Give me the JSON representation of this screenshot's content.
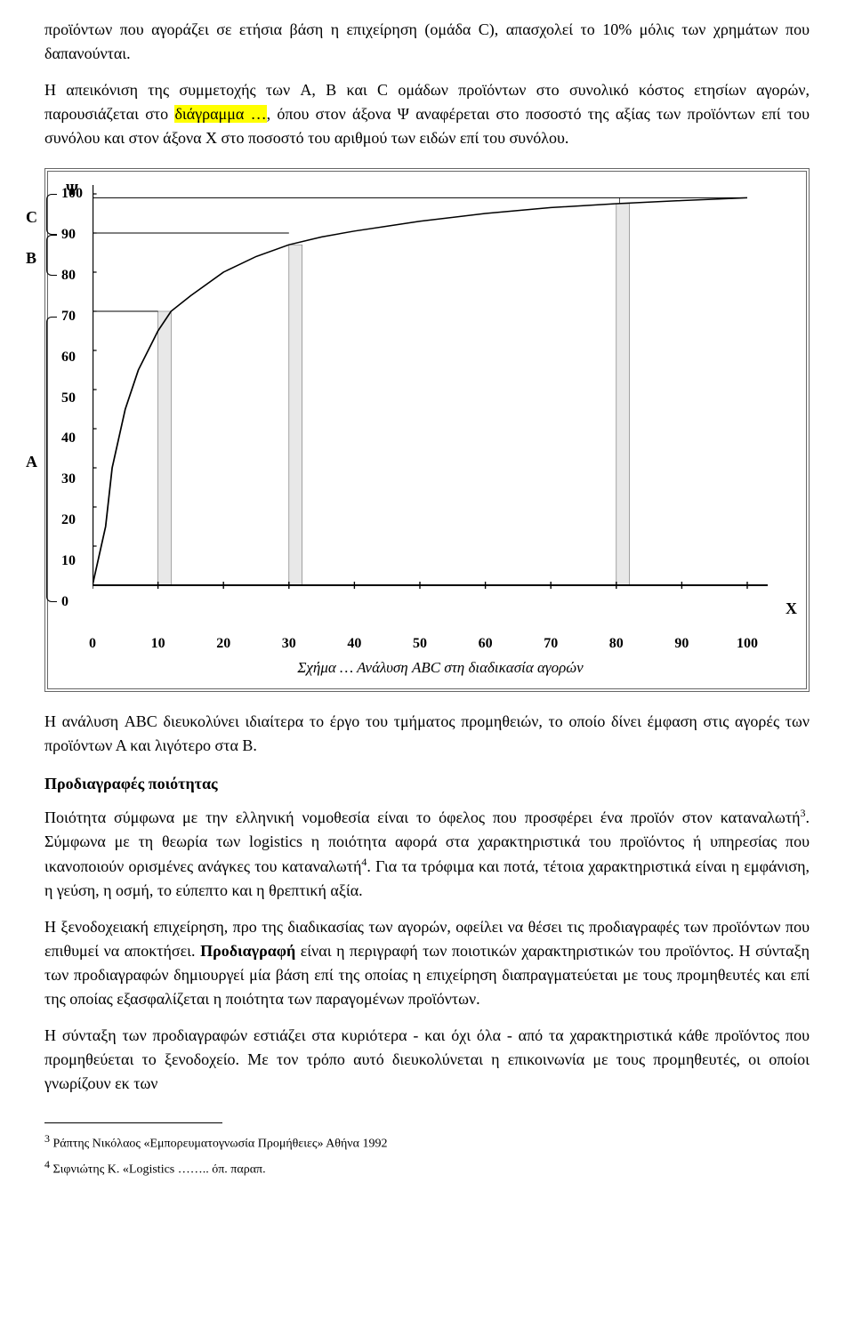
{
  "para1": "προϊόντων που αγοράζει σε ετήσια βάση η επιχείρηση (ομάδα C), απασχολεί το 10% μόλις των χρημάτων που δαπανούνται.",
  "para2a": "Η απεικόνιση της συμμετοχής των A, B και C ομάδων προϊόντων στο συνολικό κόστος ετησίων αγορών, παρουσιάζεται στο ",
  "para2b": "διάγραμμα …",
  "para2c": ", όπου στον άξονα Ψ αναφέρεται στο ποσοστό της αξίας των προϊόντων επί του συνόλου και στον άξονα Χ στο ποσοστό του αριθμού των ειδών επί του συνόλου.",
  "chart": {
    "y_axis_title": "Ψ",
    "x_axis_title": "Χ",
    "y_ticks": [
      0,
      10,
      20,
      30,
      40,
      50,
      60,
      70,
      80,
      90,
      100
    ],
    "x_ticks": [
      0,
      10,
      20,
      30,
      40,
      50,
      60,
      70,
      80,
      90,
      100
    ],
    "curve_points": [
      [
        0,
        0
      ],
      [
        2,
        15
      ],
      [
        3,
        30
      ],
      [
        5,
        45
      ],
      [
        7,
        55
      ],
      [
        10,
        65
      ],
      [
        12,
        70
      ],
      [
        15,
        74
      ],
      [
        20,
        80
      ],
      [
        25,
        84
      ],
      [
        30,
        87
      ],
      [
        35,
        89
      ],
      [
        40,
        90.5
      ],
      [
        50,
        93
      ],
      [
        60,
        95
      ],
      [
        70,
        96.5
      ],
      [
        80,
        97.5
      ],
      [
        90,
        98.3
      ],
      [
        100,
        99
      ]
    ],
    "group_c_y": [
      90,
      100
    ],
    "group_c_label": "C",
    "group_b_y": [
      80,
      90
    ],
    "group_b_label": "B",
    "group_a_y": [
      0,
      70
    ],
    "group_a_label": "A",
    "shade_bars": [
      [
        10,
        12,
        70
      ],
      [
        30,
        32,
        87
      ],
      [
        80,
        82,
        97.5
      ]
    ],
    "top_reference_line_y": 99,
    "axis_color": "#000000",
    "grid_color": "#666666",
    "background_color": "#ffffff",
    "shade_color": "#e8e8e8",
    "tick_fontsize": 16,
    "label_fontweight": "bold"
  },
  "caption": "Σχήμα … Ανάλυση ABC στη διαδικασία αγορών",
  "para3": "Η ανάλυση ABC διευκολύνει ιδιαίτερα το έργο του τμήματος προμηθειών, το οποίο δίνει έμφαση στις αγορές των προϊόντων Α και λιγότερο στα Β.",
  "section_title_1": "Προδιαγραφές ποιότητας",
  "para4a": "Ποιότητα σύμφωνα με την ελληνική νομοθεσία είναι το όφελος που προσφέρει ένα προϊόν στον καταναλωτή",
  "para4_sup1": "3",
  "para4b": ". Σύμφωνα με τη θεωρία των logistics η ποιότητα αφορά στα χαρακτηριστικά του προϊόντος ή υπηρεσίας που ικανοποιούν ορισμένες ανάγκες του καταναλωτή",
  "para4_sup2": "4",
  "para4c": ". Για τα τρόφιμα και ποτά, τέτοια χαρακτηριστικά είναι η εμφάνιση, η γεύση, η οσμή, το εύπεπτο και η θρεπτική αξία.",
  "para5a": "Η ξενοδοχειακή επιχείρηση, προ της διαδικασίας των αγορών, οφείλει να θέσει τις προδιαγραφές των προϊόντων που επιθυμεί να αποκτήσει. ",
  "para5b": "Προδιαγραφή",
  "para5c": " είναι η περιγραφή των ποιοτικών χαρακτηριστικών του προϊόντος. Η σύνταξη των προδιαγραφών δημιουργεί μία βάση επί της οποίας η επιχείρηση διαπραγματεύεται με τους προμηθευτές και επί της οποίας εξασφαλίζεται η ποιότητα των παραγομένων προϊόντων.",
  "para6": "Η σύνταξη των προδιαγραφών εστιάζει στα κυριότερα - και όχι όλα - από τα χαρακτηριστικά κάθε προϊόντος που προμηθεύεται το ξενοδοχείο. Με τον τρόπο αυτό διευκολύνεται η επικοινωνία με τους προμηθευτές, οι οποίοι γνωρίζουν εκ των",
  "footnote3_num": "3",
  "footnote3": " Ράπτης Νικόλαος «Εμπορευματογνωσία Προμήθειες» Αθήνα 1992",
  "footnote4_num": "4",
  "footnote4": " Σιφνιώτης Κ. «Logistics …….. όπ. παραπ."
}
